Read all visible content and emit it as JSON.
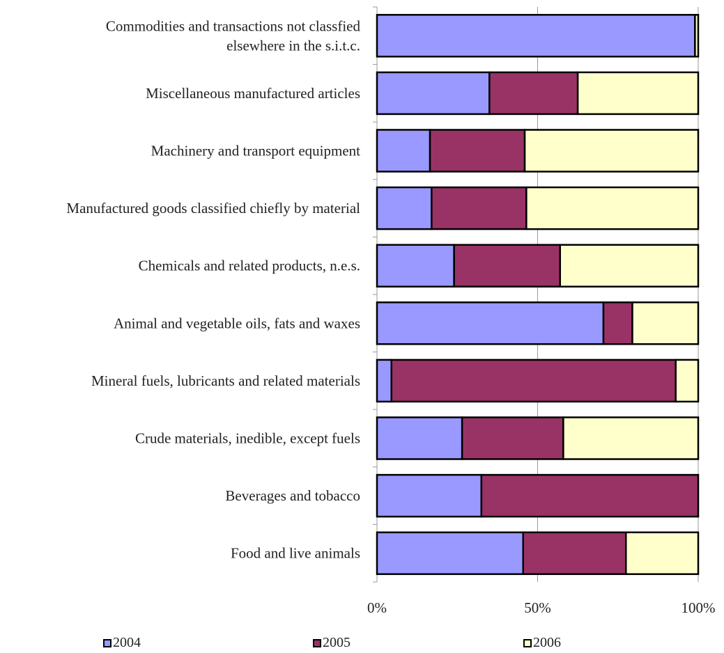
{
  "chart_data": {
    "type": "bar",
    "orientation": "horizontal",
    "stacked": "percent",
    "title": "",
    "xlabel": "",
    "ylabel": "",
    "xlim": [
      0,
      100
    ],
    "x_ticks": [
      "0%",
      "50%",
      "100%"
    ],
    "grid": true,
    "legend_position": "bottom",
    "categories": [
      "Commodities and transactions not classfied elsewhere in the s.i.t.c.",
      "Miscellaneous manufactured articles",
      "Machinery and transport equipment",
      "Manufactured goods classified chiefly by material",
      "Chemicals and related products, n.e.s.",
      "Animal and vegetable oils, fats and waxes",
      "Mineral fuels, lubricants and related materials",
      "Crude materials, inedible, except fuels",
      "Beverages and tobacco",
      "Food and live animals"
    ],
    "category_lines": [
      [
        "Commodities and transactions not classfied",
        "elsewhere in the s.i.t.c."
      ],
      [
        "Miscellaneous manufactured articles"
      ],
      [
        "Machinery and transport equipment"
      ],
      [
        "Manufactured goods classified chiefly by material"
      ],
      [
        "Chemicals and related products, n.e.s."
      ],
      [
        "Animal and vegetable oils, fats and waxes"
      ],
      [
        "Mineral fuels, lubricants and related materials"
      ],
      [
        "Crude materials, inedible, except fuels"
      ],
      [
        "Beverages and tobacco"
      ],
      [
        "Food and live animals"
      ]
    ],
    "series": [
      {
        "name": "2004",
        "color": "#9999FF",
        "values": [
          99,
          35,
          16.5,
          17,
          24,
          70.5,
          4.5,
          26.5,
          32.5,
          45.5
        ]
      },
      {
        "name": "2005",
        "color": "#993366",
        "values": [
          0,
          27.5,
          29.5,
          29.5,
          33,
          9,
          88.5,
          31.5,
          67.5,
          32
        ]
      },
      {
        "name": "2006",
        "color": "#FFFFCC",
        "values": [
          1,
          37.5,
          54,
          53.5,
          43,
          20.5,
          7,
          42,
          0,
          22.5
        ]
      }
    ]
  }
}
